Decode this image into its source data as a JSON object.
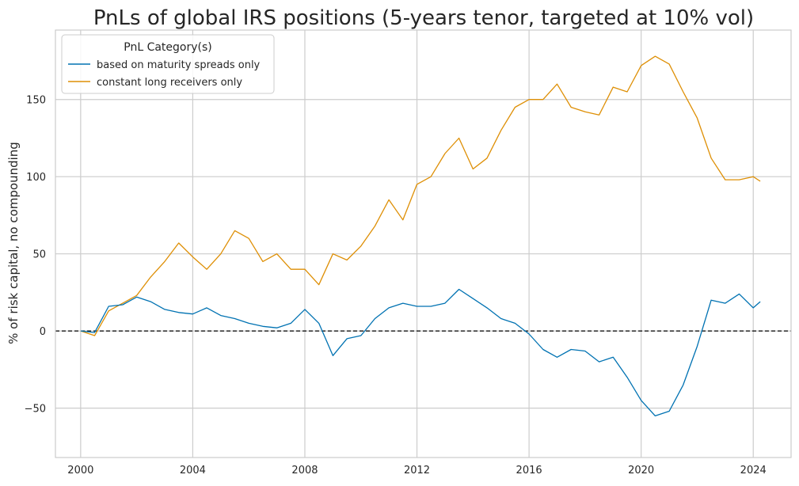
{
  "colors": {
    "series_blue": "#0072b2",
    "series_orange": "#de8f05",
    "grid": "#cccccc",
    "zero_line": "#000000"
  },
  "chart_data": {
    "type": "line",
    "title": "PnLs of global IRS positions (5-years tenor, targeted at 10% vol)",
    "xlabel": "",
    "ylabel": "% of risk capital, no compounding",
    "xlim": [
      1999.1,
      2025.35
    ],
    "ylim": [
      -82,
      195
    ],
    "x_ticks": [
      "2000",
      "2004",
      "2008",
      "2012",
      "2016",
      "2020",
      "2024"
    ],
    "y_ticks": [
      "−50",
      "0",
      "50",
      "100",
      "150"
    ],
    "grid": true,
    "zero_reference_line": "dashed",
    "legend": {
      "title": "PnL Category(s)",
      "placement": "top-left"
    },
    "x": [
      2000.0,
      2000.5,
      2001.0,
      2001.5,
      2002.0,
      2002.5,
      2003.0,
      2003.5,
      2004.0,
      2004.5,
      2005.0,
      2005.5,
      2006.0,
      2006.5,
      2007.0,
      2007.5,
      2008.0,
      2008.5,
      2009.0,
      2009.5,
      2010.0,
      2010.5,
      2011.0,
      2011.5,
      2012.0,
      2012.5,
      2013.0,
      2013.5,
      2014.0,
      2014.5,
      2015.0,
      2015.5,
      2016.0,
      2016.5,
      2017.0,
      2017.5,
      2018.0,
      2018.5,
      2019.0,
      2019.5,
      2020.0,
      2020.5,
      2021.0,
      2021.5,
      2022.0,
      2022.5,
      2023.0,
      2023.5,
      2024.0,
      2024.25
    ],
    "series": [
      {
        "name": "based on maturity spreads only",
        "color": "#0072b2",
        "values": [
          0,
          -1,
          16,
          17,
          22,
          19,
          14,
          12,
          11,
          15,
          10,
          8,
          5,
          3,
          2,
          5,
          14,
          5,
          -16,
          -5,
          -3,
          8,
          15,
          18,
          16,
          16,
          18,
          27,
          21,
          15,
          8,
          5,
          -2,
          -12,
          -17,
          -12,
          -13,
          -20,
          -17,
          -30,
          -45,
          -55,
          -52,
          -35,
          -10,
          20,
          18,
          24,
          15,
          19
        ]
      },
      {
        "name": "constant long receivers only",
        "color": "#de8f05",
        "values": [
          0,
          -3,
          13,
          18,
          23,
          35,
          45,
          57,
          48,
          40,
          50,
          65,
          60,
          45,
          50,
          40,
          40,
          30,
          50,
          46,
          55,
          68,
          85,
          72,
          95,
          100,
          115,
          125,
          105,
          112,
          130,
          145,
          150,
          150,
          160,
          145,
          142,
          140,
          158,
          155,
          172,
          178,
          173,
          155,
          138,
          112,
          98,
          98,
          100,
          97
        ]
      }
    ]
  }
}
